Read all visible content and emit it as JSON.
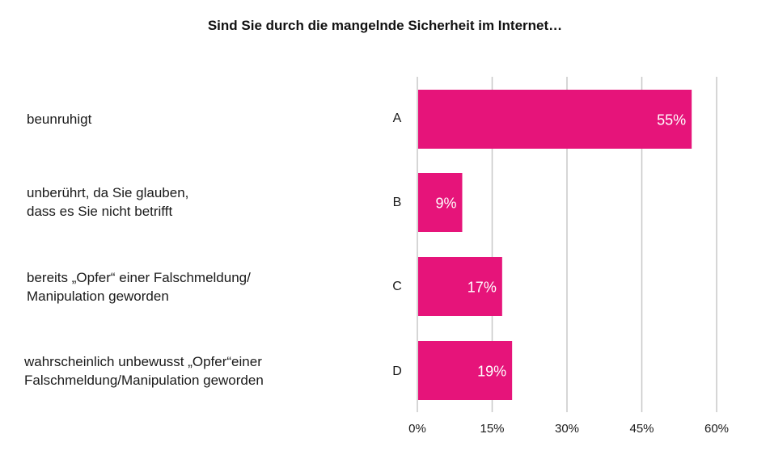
{
  "chart_data": {
    "type": "bar",
    "orientation": "horizontal",
    "title": "Sind Sie durch die mangelnde Sicherheit im Internet…",
    "categories": [
      "A",
      "B",
      "C",
      "D"
    ],
    "category_descriptions": [
      [
        "beunruhigt"
      ],
      [
        "unberührt, da Sie glauben,",
        "dass es Sie nicht betrifft"
      ],
      [
        "bereits „Opfer“ einer Falschmeldung/",
        "Manipulation geworden"
      ],
      [
        "wahrscheinlich unbewusst „Opfer“einer",
        "Falschmeldung/Manipulation geworden"
      ]
    ],
    "values": [
      55,
      9,
      17,
      19
    ],
    "data_labels": [
      "55%",
      "9%",
      "17%",
      "19%"
    ],
    "xlabel": "",
    "ylabel": "",
    "xlim": [
      0,
      60
    ],
    "xticks": [
      0,
      15,
      30,
      45,
      60
    ],
    "xtick_labels": [
      "0%",
      "15%",
      "30%",
      "45%",
      "60%"
    ],
    "grid": "vertical",
    "legend": "none",
    "colors": {
      "bar": "#e6147a",
      "grid": "#c8c8c8",
      "data_label": "#ffffff"
    }
  }
}
